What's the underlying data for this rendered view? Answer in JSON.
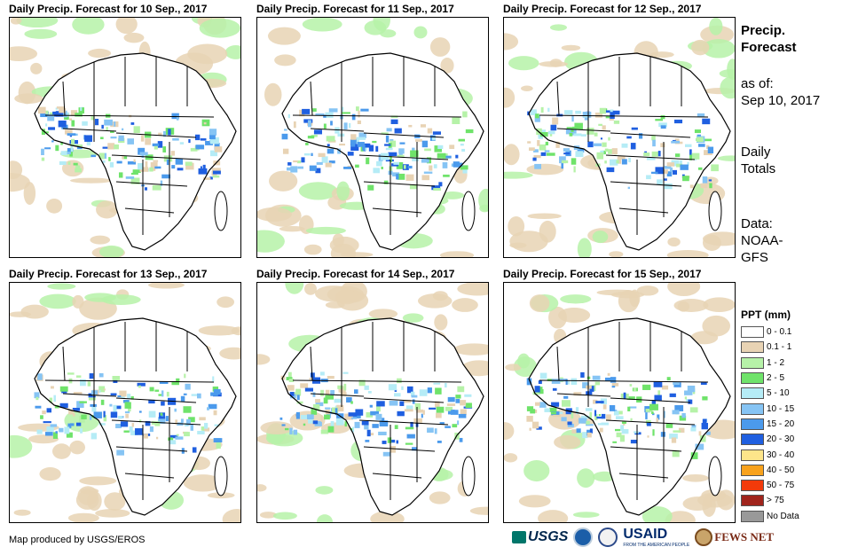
{
  "panels": [
    {
      "title": "Daily Precip. Forecast for 10 Sep., 2017"
    },
    {
      "title": "Daily Precip. Forecast for 11 Sep., 2017"
    },
    {
      "title": "Daily Precip. Forecast for 12 Sep., 2017"
    },
    {
      "title": "Daily Precip. Forecast for 13 Sep., 2017"
    },
    {
      "title": "Daily Precip. Forecast for 14 Sep., 2017"
    },
    {
      "title": "Daily Precip. Forecast for 15 Sep., 2017"
    }
  ],
  "side": {
    "title_line1": "Precip.",
    "title_line2": "Forecast",
    "asof_label": "as of:",
    "asof_date": "Sep 10, 2017",
    "totals_line1": "Daily",
    "totals_line2": "Totals",
    "data_label": "Data:",
    "data_source1": "NOAA-",
    "data_source2": "GFS"
  },
  "legend": {
    "title": "PPT (mm)",
    "items": [
      {
        "label": "0 - 0.1",
        "color": "#ffffff"
      },
      {
        "label": "0.1 - 1",
        "color": "#e8d3b4"
      },
      {
        "label": "1 - 2",
        "color": "#b6f2a8"
      },
      {
        "label": "2 - 5",
        "color": "#6fe36a"
      },
      {
        "label": "5 - 10",
        "color": "#b5ecf6"
      },
      {
        "label": "10 - 15",
        "color": "#86c4f4"
      },
      {
        "label": "15 - 20",
        "color": "#4b9aec"
      },
      {
        "label": "20 - 30",
        "color": "#1f5fe0"
      },
      {
        "label": "30 - 40",
        "color": "#fde58a"
      },
      {
        "label": "40 - 50",
        "color": "#f8a21c"
      },
      {
        "label": "50 - 75",
        "color": "#f23a0a"
      },
      {
        "label": "> 75",
        "color": "#a0241c"
      },
      {
        "label": "No Data",
        "color": "#999999"
      }
    ]
  },
  "footer": {
    "credit": "Map produced by USGS/EROS"
  },
  "logos": {
    "usgs": "USGS",
    "usaid": "USAID",
    "usaid_sub": "FROM THE AMERICAN PEOPLE",
    "fews": "FEWS NET"
  }
}
